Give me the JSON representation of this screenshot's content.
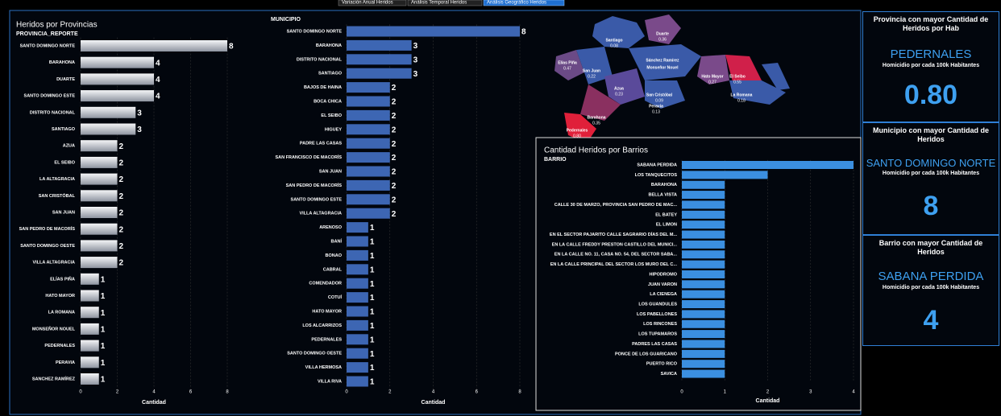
{
  "tabs": [
    "Variación Anual Heridos",
    "Análisis Temporal Heridos",
    "Análisis Geográfico Heridos"
  ],
  "chart_data": [
    {
      "type": "bar",
      "orientation": "horizontal",
      "title": "Heridos por Provincias",
      "y_label": "PROVINCIA_REPORTE",
      "x_label": "Cantidad",
      "categories": [
        "SANTO DOMINGO NORTE",
        "BARAHONA",
        "DUARTE",
        "SANTO DOMINGO ESTE",
        "DISTRITO NACIONAL",
        "SANTIAGO",
        "AZUA",
        "EL SEIBO",
        "LA ALTAGRACIA",
        "SAN CRISTÓBAL",
        "SAN JUAN",
        "SAN PEDRO DE MACORÍS",
        "SANTO DOMINGO OESTE",
        "VILLA ALTAGRACIA",
        "ELÍAS PIÑA",
        "HATO MAYOR",
        "LA ROMANA",
        "MONSEÑOR NOUEL",
        "PEDERNALES",
        "PERAVIA",
        "SANCHEZ RAMÍREZ"
      ],
      "values": [
        8,
        4,
        4,
        4,
        3,
        3,
        2,
        2,
        2,
        2,
        2,
        2,
        2,
        2,
        1,
        1,
        1,
        1,
        1,
        1,
        1
      ],
      "color": "#c4c8d0",
      "xlim": [
        0,
        8
      ],
      "xticks": [
        0,
        2,
        4,
        6,
        8
      ],
      "grid": true,
      "data_labels": true
    },
    {
      "type": "bar",
      "orientation": "horizontal",
      "y_label": "MUNICIPIO",
      "x_label": "Cantidad",
      "categories": [
        "SANTO DOMINGO NORTE",
        "BARAHONA",
        "DISTRITO NACIONAL",
        "SANTIAGO",
        "BAJOS DE HAINA",
        "BOCA CHICA",
        "EL SEIBO",
        "HIGUEY",
        "PADRE LAS CASAS",
        "SAN FRANCISCO DE MACORÍS",
        "SAN JUAN",
        "SAN PEDRO DE MACORÍS",
        "SANTO DOMINGO ESTE",
        "VILLA ALTAGRACIA",
        "ARENOSO",
        "BANÍ",
        "BONAO",
        "CABRAL",
        "COMENDADOR",
        "COTUÍ",
        "HATO MAYOR",
        "LOS ALCARRIZOS",
        "PEDERNALES",
        "SANTO DOMINGO OESTE",
        "VILLA HERMOSA",
        "VILLA RIVA"
      ],
      "values": [
        8,
        3,
        3,
        3,
        2,
        2,
        2,
        2,
        2,
        2,
        2,
        2,
        2,
        2,
        1,
        1,
        1,
        1,
        1,
        1,
        1,
        1,
        1,
        1,
        1,
        1
      ],
      "color": "#3d66b3",
      "xlim": [
        0,
        8
      ],
      "xticks": [
        0,
        2,
        4,
        6,
        8
      ],
      "grid": true,
      "data_labels": true
    },
    {
      "type": "bar",
      "orientation": "horizontal",
      "title": "Cantidad Heridos por Barrios",
      "y_label": "BARRIO",
      "x_label": "Cantidad",
      "categories": [
        "SABANA PERDIDA",
        "LOS TANQUECITOS",
        "BARAHONA",
        "BELLA VISTA",
        "CALLE 30 DE MARZO, PROVINCIA SAN PEDRO DE MAC...",
        "EL BATEY",
        "EL LIMON",
        "EN EL SECTOR PAJARITO CALLE SAGRARIO DÍAS DEL M...",
        "EN LA CALLE FREDDY PRESTON CASTILLO DEL MUNICI...",
        "EN LA CALLE NO. 11, CASA NO. 54, DEL SECTOR SABA...",
        "EN LA CALLE PRINCIPAL DEL SECTOR LOS MURO DEL C...",
        "HIPODROMO",
        "JUAN VARON",
        "LA CIENEGA",
        "LOS GUANDULES",
        "LOS PABELLONES",
        "LOS RINCONES",
        "LOS TUPAMAROS",
        "PADRES LAS CASAS",
        "PONCE DE LOS GUARICANO",
        "PUERTO RICO",
        "SAVICA"
      ],
      "values": [
        4,
        2,
        1,
        1,
        1,
        1,
        1,
        1,
        1,
        1,
        1,
        1,
        1,
        1,
        1,
        1,
        1,
        1,
        1,
        1,
        1,
        1
      ],
      "color": "#3b8fe0",
      "xlim": [
        0,
        4
      ],
      "xticks": [
        0,
        1,
        2,
        3,
        4
      ],
      "grid": true,
      "data_labels": false
    }
  ],
  "map": {
    "regions": [
      {
        "name": "Santiago",
        "value": "0.08"
      },
      {
        "name": "Duarte",
        "value": "0.36"
      },
      {
        "name": "Elías Piña",
        "value": "0.47"
      },
      {
        "name": "San Juan",
        "value": "0.22"
      },
      {
        "name": "Sánchez Ramírez",
        "value": ""
      },
      {
        "name": "Monseñor Nouel",
        "value": ""
      },
      {
        "name": "Hato Mayor",
        "value": "0.27"
      },
      {
        "name": "El Seibo",
        "value": "0.55"
      },
      {
        "name": "Azua",
        "value": "0.23"
      },
      {
        "name": "San Cristóbal",
        "value": "0.09"
      },
      {
        "name": "La Romana",
        "value": "0.18"
      },
      {
        "name": "Peravia",
        "value": "0.13"
      },
      {
        "name": "Barahona",
        "value": "0.35"
      },
      {
        "name": "Pedernales",
        "value": "0.80"
      }
    ]
  },
  "cards": [
    {
      "title": "Provincia con mayor Cantidad de Heridos por Hab",
      "name": "PEDERNALES",
      "subtitle": "Homicidio por cada 100k Habitantes",
      "value": "0.80"
    },
    {
      "title": "Municipio con mayor Cantidad de Heridos",
      "name": "SANTO DOMINGO NORTE",
      "subtitle": "Homicidio por cada 100k Habitantes",
      "value": "8"
    },
    {
      "title": "Barrio con mayor Cantidad de Heridos",
      "name": "SABANA PERDIDA",
      "subtitle": "Homicidio por cada 100k Habitantes",
      "value": "4"
    }
  ]
}
